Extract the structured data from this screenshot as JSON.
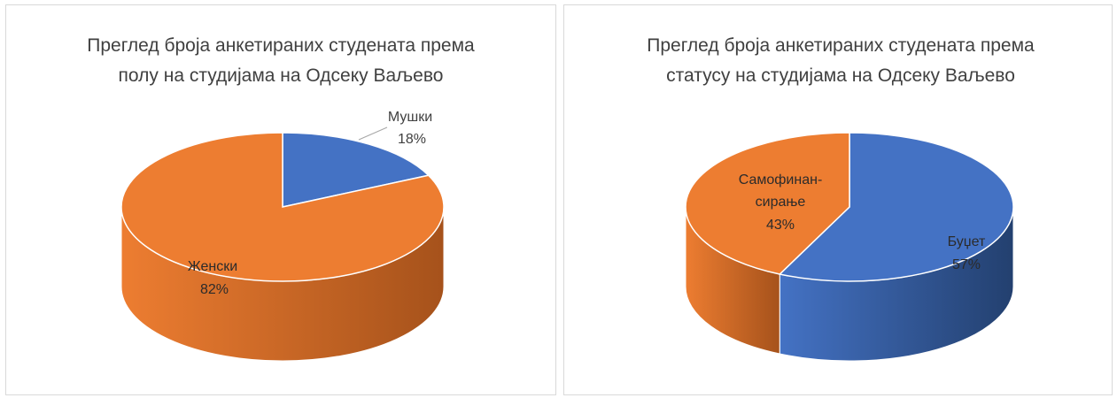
{
  "chart_data": [
    {
      "type": "pie",
      "title_lines": [
        "Преглед броја анкетираних студената према",
        "полу на студијама на Одсеку Ваљево"
      ],
      "slices": [
        {
          "label": "Мушки",
          "percent_label": "18%",
          "value": 18,
          "color": "#4472C4",
          "dark": "#2C4D8C"
        },
        {
          "label": "Женски",
          "percent_label": "82%",
          "value": 82,
          "color": "#ED7D31",
          "dark": "#A6521B"
        }
      ]
    },
    {
      "type": "pie",
      "title_lines": [
        "Преглед броја анкетираних студената према",
        "статусу на студијама на Одсеку Ваљево"
      ],
      "slices": [
        {
          "label": "Буџет",
          "percent_label": "57%",
          "value": 57,
          "color": "#4472C4",
          "dark": "#23406F"
        },
        {
          "label_lines": [
            "Самофинан-",
            "сирање"
          ],
          "percent_label": "43%",
          "value": 43,
          "color": "#ED7D31",
          "dark": "#A6521B"
        }
      ]
    }
  ]
}
